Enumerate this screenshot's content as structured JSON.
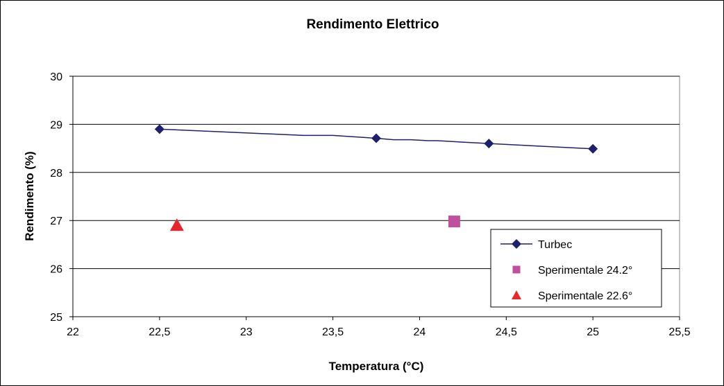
{
  "chart_data": {
    "type": "scatter",
    "title": "Rendimento Elettrico",
    "xlabel": "Temperatura (°C)",
    "ylabel": "Rendimento (%)",
    "xlim": [
      22,
      25.5
    ],
    "ylim": [
      25,
      30
    ],
    "x_ticks": [
      22,
      22.5,
      23,
      23.5,
      24,
      24.5,
      25,
      25.5
    ],
    "x_tick_labels": [
      "22",
      "22,5",
      "23",
      "23,5",
      "24",
      "24,5",
      "25",
      "25,5"
    ],
    "y_ticks": [
      25,
      26,
      27,
      28,
      29,
      30
    ],
    "y_tick_labels": [
      "25",
      "26",
      "27",
      "28",
      "29",
      "30"
    ],
    "grid": "horizontal",
    "legend_position": "bottom-right",
    "series": [
      {
        "name": "Turbec",
        "kind": "line",
        "marker": "diamond",
        "color": "#1f1f6b",
        "line": [
          [
            22.5,
            28.9
          ],
          [
            23.33,
            28.77
          ],
          [
            23.5,
            28.77
          ],
          [
            23.75,
            28.71
          ],
          [
            23.85,
            28.68
          ],
          [
            23.95,
            28.68
          ],
          [
            24.05,
            28.66
          ],
          [
            24.1,
            28.66
          ],
          [
            24.25,
            28.63
          ],
          [
            24.4,
            28.6
          ],
          [
            25.0,
            28.49
          ]
        ],
        "points": [
          [
            22.5,
            28.9
          ],
          [
            23.75,
            28.71
          ],
          [
            24.4,
            28.6
          ],
          [
            25.0,
            28.49
          ]
        ]
      },
      {
        "name": "Sperimentale 24.2°",
        "kind": "marker",
        "marker": "square",
        "color": "#c0509c",
        "points": [
          [
            24.2,
            26.98
          ]
        ]
      },
      {
        "name": "Sperimentale 22.6°",
        "kind": "marker",
        "marker": "triangle",
        "color": "#e8262b",
        "points": [
          [
            22.6,
            26.9
          ]
        ]
      }
    ]
  }
}
